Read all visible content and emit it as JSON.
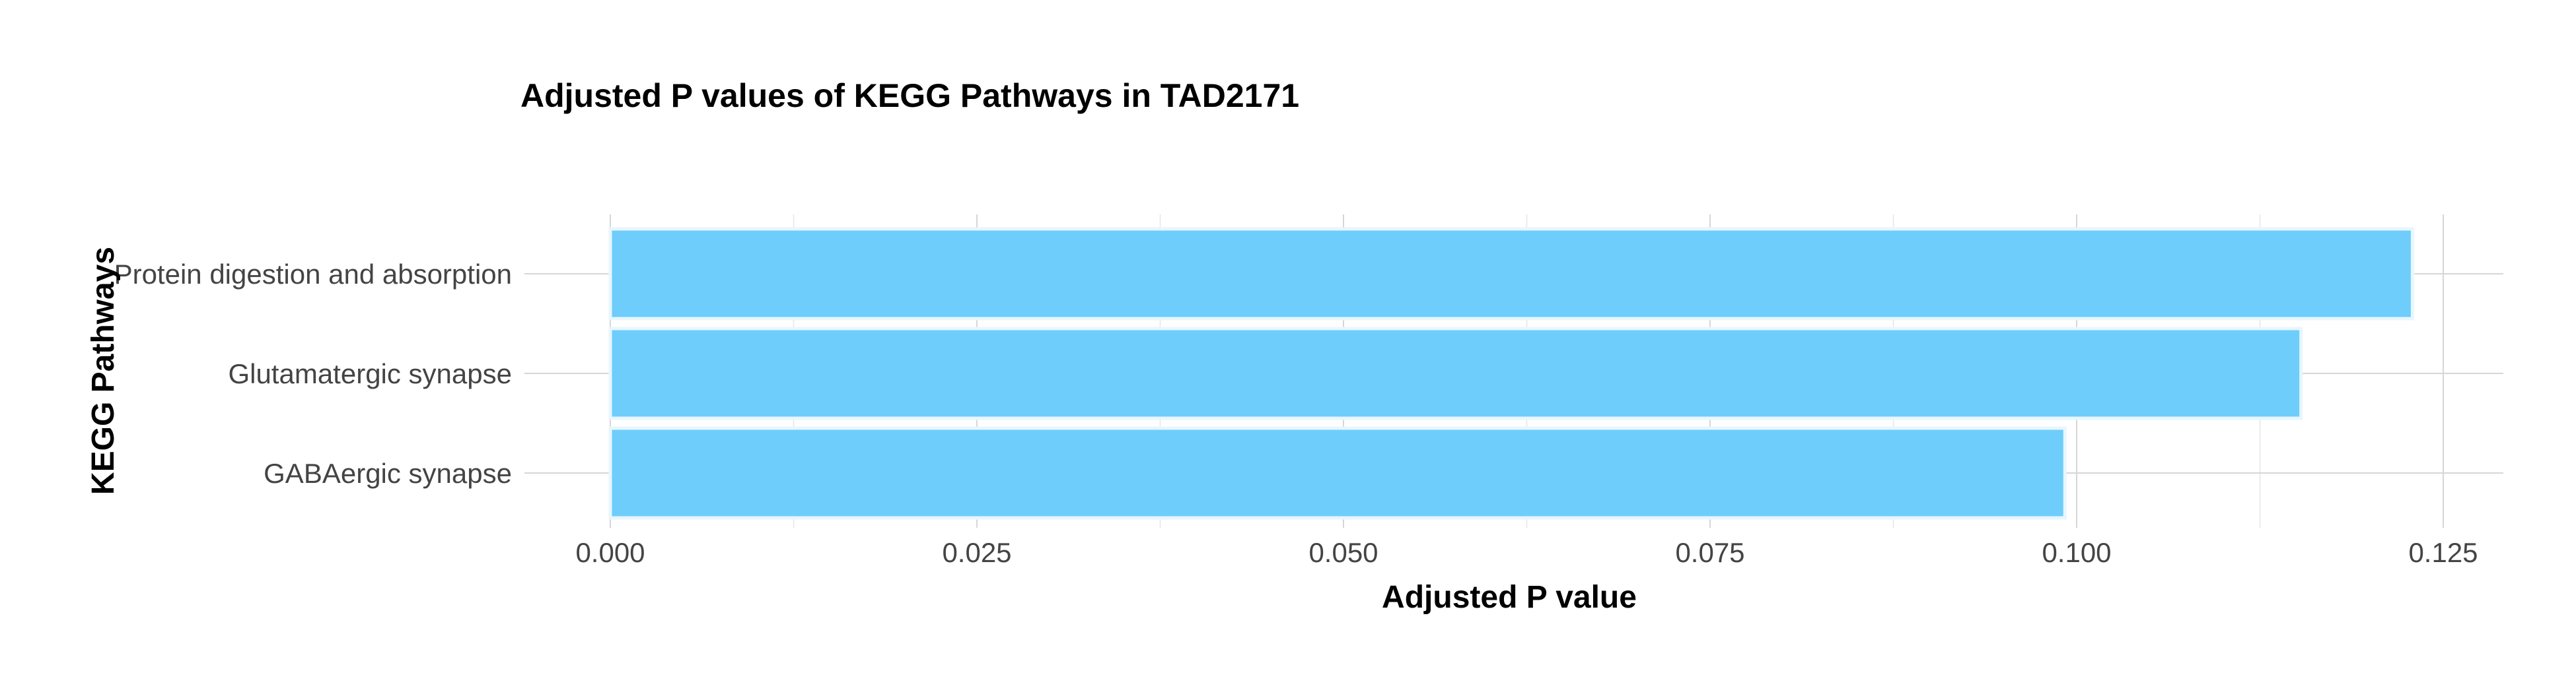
{
  "chart_data": {
    "type": "bar",
    "orientation": "horizontal",
    "title": "Adjusted P values of KEGG Pathways in TAD2171",
    "xlabel": "Adjusted P value",
    "ylabel": "KEGG Pathways",
    "categories": [
      "Protein digestion and absorption",
      "Glutamatergic synapse",
      "GABAergic synapse"
    ],
    "values": [
      0.1229,
      0.1153,
      0.0992
    ],
    "xlim": [
      0,
      0.129
    ],
    "xticks": [
      0.0,
      0.025,
      0.05,
      0.075,
      0.1,
      0.125
    ],
    "xtick_labels": [
      "0.000",
      "0.025",
      "0.050",
      "0.075",
      "0.100",
      "0.125"
    ],
    "grid": true,
    "legend": "none",
    "bar_color": "#6ecdfb",
    "bar_edge_color": "#e8f6fe"
  }
}
